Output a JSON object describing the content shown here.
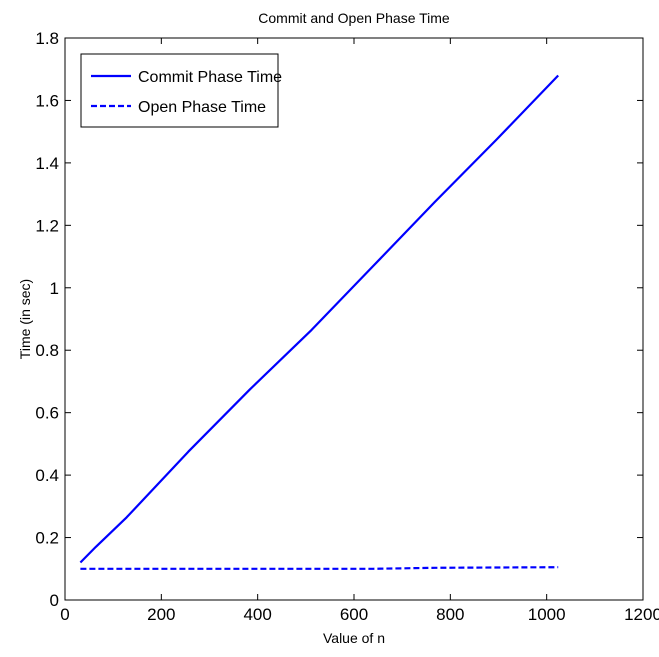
{
  "chart_data": {
    "type": "line",
    "title": "Commit and Open Phase Time",
    "xlabel": "Value of n",
    "ylabel": "Time (in sec)",
    "xlim": [
      0,
      1200
    ],
    "ylim": [
      0,
      1.8
    ],
    "xticks": [
      0,
      200,
      400,
      600,
      800,
      1000,
      1200
    ],
    "yticks": [
      0,
      0.2,
      0.4,
      0.6,
      0.8,
      1,
      1.2,
      1.4,
      1.6,
      1.8
    ],
    "grid": false,
    "legend_position": "top-left",
    "series": [
      {
        "name": "Commit Phase Time",
        "line_style": "solid",
        "color": "#0000ff",
        "x": [
          32,
          64,
          128,
          256,
          384,
          512,
          640,
          768,
          896,
          1024
        ],
        "y": [
          0.12,
          0.17,
          0.265,
          0.475,
          0.675,
          0.865,
          1.07,
          1.275,
          1.475,
          1.68
        ]
      },
      {
        "name": "Open Phase Time",
        "line_style": "dashed",
        "color": "#0000ff",
        "x": [
          32,
          128,
          256,
          384,
          512,
          640,
          768,
          896,
          1024
        ],
        "y": [
          0.1,
          0.1,
          0.1,
          0.1,
          0.1,
          0.1,
          0.103,
          0.104,
          0.105
        ]
      }
    ]
  }
}
